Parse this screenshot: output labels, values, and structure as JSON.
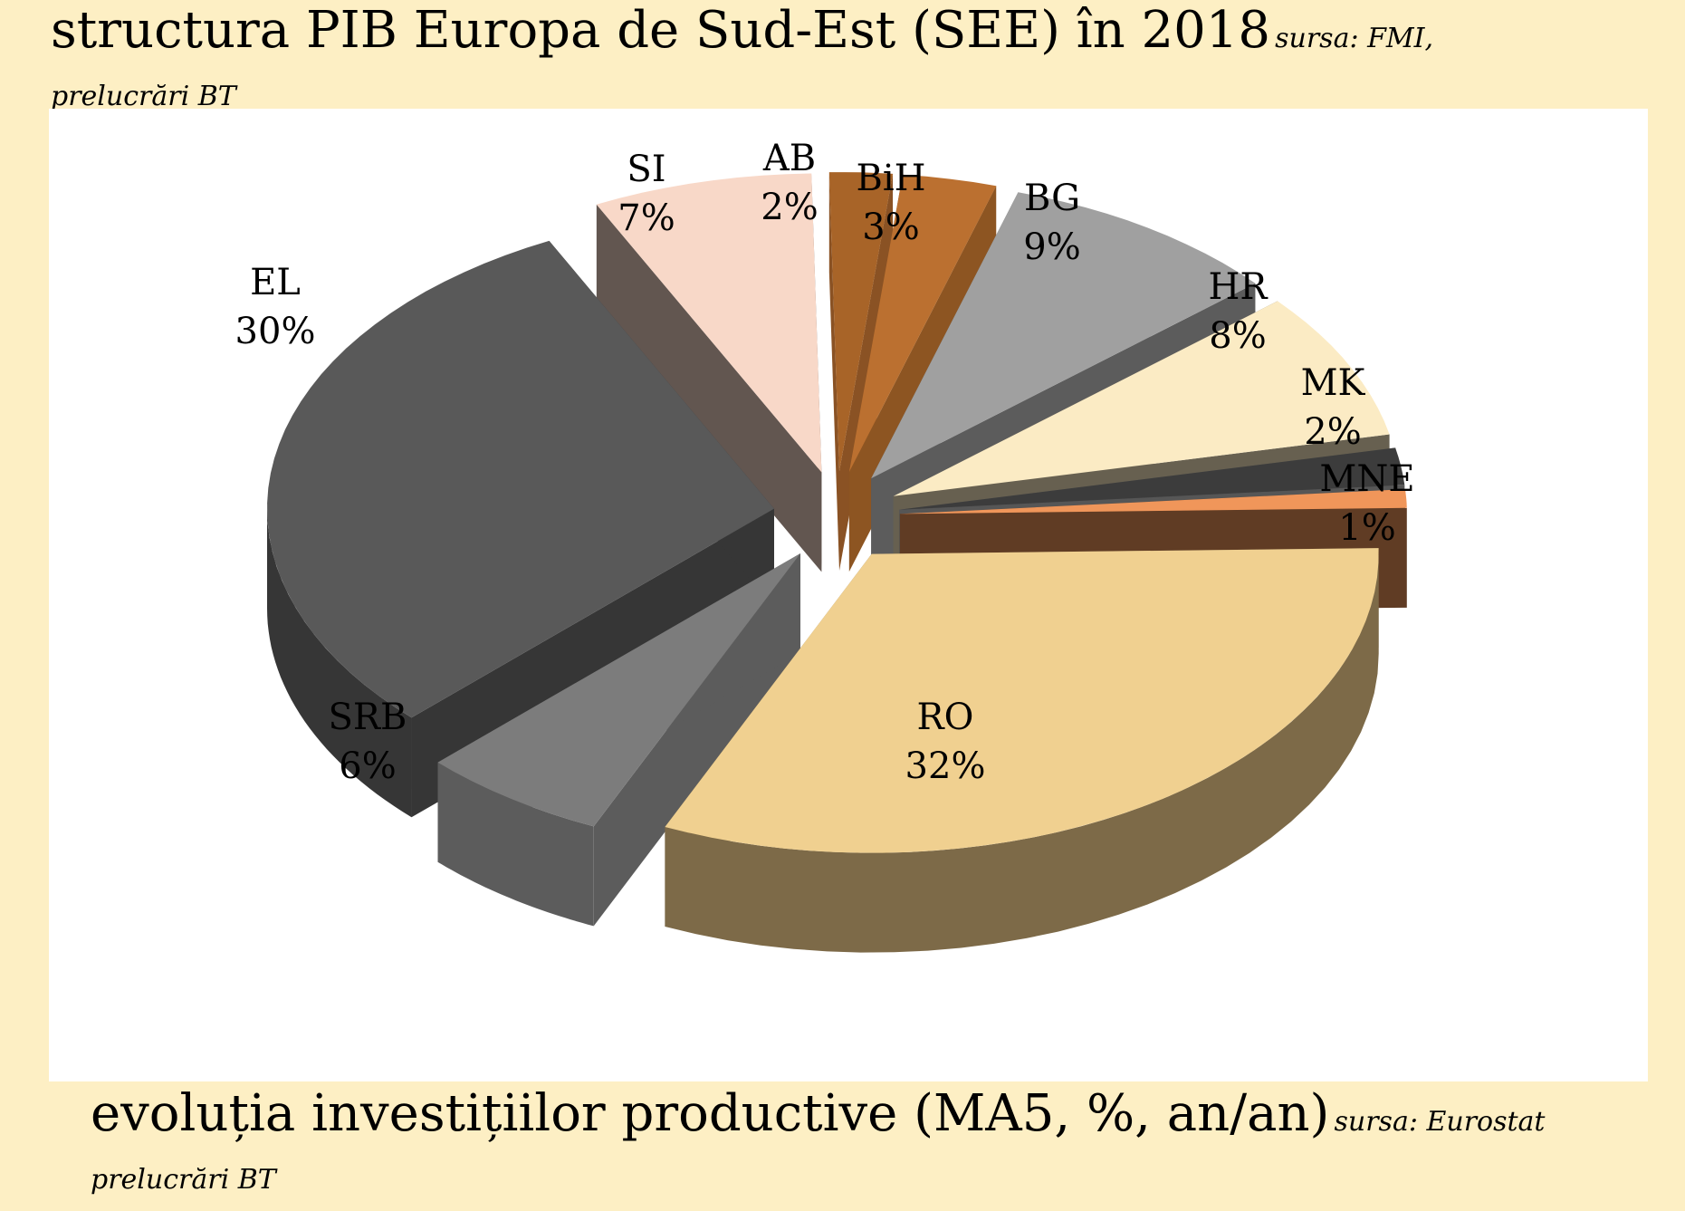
{
  "header": {
    "title": "structura PIB Europa de Sud-Est (SEE) în 2018",
    "source_line1": "sursa: FMI,",
    "source_line2": "prelucrări BT"
  },
  "footer": {
    "title": "evoluția investițiilor productive (MA5, %, an/an)",
    "source_line1": "sursa: Eurostat",
    "source_line2": "prelucrări BT"
  },
  "chart_data": {
    "type": "pie",
    "style": "3d-exploded",
    "title": "structura PIB Europa de Sud-Est (SEE) în 2018",
    "unit": "%",
    "slices": [
      {
        "label": "RO",
        "value": 32,
        "display": "32%",
        "top": "#f0d090",
        "side": "#7d6a48"
      },
      {
        "label": "SRB",
        "value": 6,
        "display": "6%",
        "top": "#7c7c7c",
        "side": "#5c5c5c"
      },
      {
        "label": "EL",
        "value": 30,
        "display": "30%",
        "top": "#595959",
        "side": "#363636"
      },
      {
        "label": "SI",
        "value": 7,
        "display": "7%",
        "top": "#f8d8c8",
        "side": "#625650"
      },
      {
        "label": "AB",
        "value": 2,
        "display": "2%",
        "top": "#a86428",
        "side": "#8a5224"
      },
      {
        "label": "BiH",
        "value": 3,
        "display": "3%",
        "top": "#bb7030",
        "side": "#8d5522"
      },
      {
        "label": "BG",
        "value": 9,
        "display": "9%",
        "top": "#a0a0a0",
        "side": "#5c5c5c"
      },
      {
        "label": "HR",
        "value": 8,
        "display": "8%",
        "top": "#fbebc4",
        "side": "#676050"
      },
      {
        "label": "MK",
        "value": 2,
        "display": "2%",
        "top": "#3c3c3c",
        "side": "#565656"
      },
      {
        "label": "MNE",
        "value": 1,
        "display": "1%",
        "top": "#f0965a",
        "side": "#603c24"
      }
    ]
  }
}
